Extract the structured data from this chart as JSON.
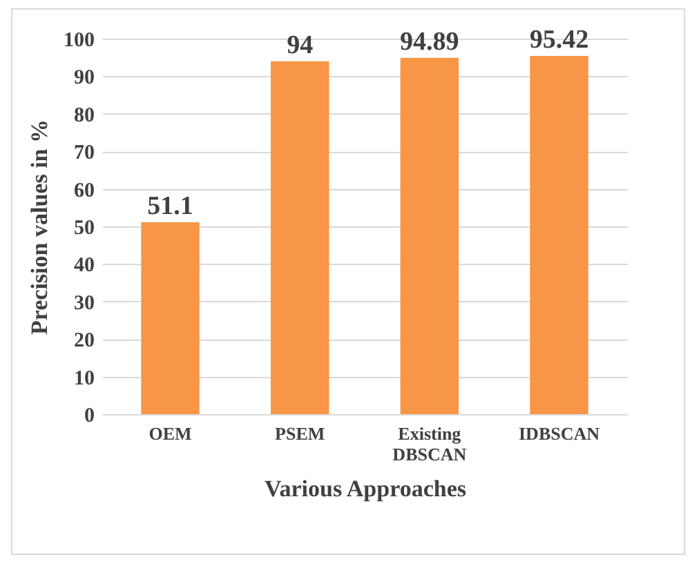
{
  "chart_data": {
    "type": "bar",
    "xlabel": "Various Approaches",
    "ylabel": "Precision values in %",
    "categories": [
      "OEM",
      "PSEM",
      "Existing DBSCAN",
      "IDBSCAN"
    ],
    "values": [
      51.1,
      94,
      94.89,
      95.42
    ],
    "color": "#f79646",
    "ylim": [
      0,
      100
    ],
    "yticks": [
      0,
      10,
      20,
      30,
      40,
      50,
      60,
      70,
      80,
      90,
      100
    ],
    "grid": "y",
    "data_labels": true
  }
}
